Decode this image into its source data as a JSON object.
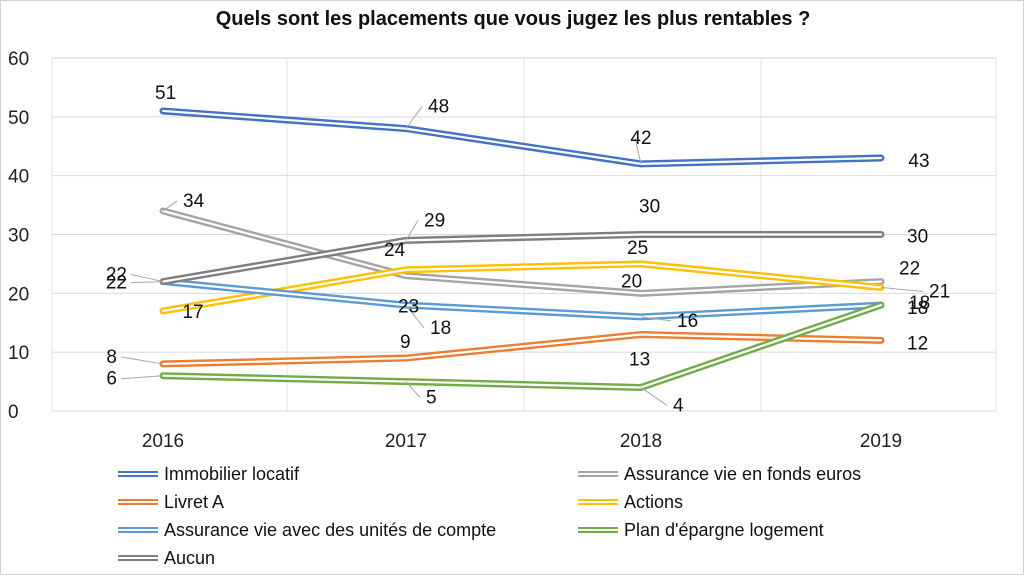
{
  "chart_data": {
    "type": "line",
    "title": "Quels sont les placements que vous jugez les plus rentables ?",
    "xlabel": "",
    "ylabel": "",
    "categories": [
      "2016",
      "2017",
      "2018",
      "2019"
    ],
    "ylim": [
      0,
      60
    ],
    "yticks": [
      0,
      10,
      20,
      30,
      40,
      50,
      60
    ],
    "grid": true,
    "legend_position": "bottom",
    "series": [
      {
        "name": "Immobilier locatif",
        "color": "#4472C4",
        "values": [
          51,
          48,
          42,
          43
        ]
      },
      {
        "name": "Assurance vie en fonds euros",
        "color": "#A5A5A5",
        "values": [
          34,
          23,
          20,
          22
        ]
      },
      {
        "name": "Livret A",
        "color": "#ED7D31",
        "values": [
          8,
          9,
          13,
          12
        ]
      },
      {
        "name": "Actions",
        "color": "#FFC000",
        "values": [
          17,
          24,
          25,
          21
        ]
      },
      {
        "name": "Assurance vie avec des unités de compte",
        "color": "#5B9BD5",
        "values": [
          22,
          18,
          16,
          18
        ]
      },
      {
        "name": "Plan d'épargne logement",
        "color": "#70AD47",
        "values": [
          6,
          5,
          4,
          18
        ]
      },
      {
        "name": "Aucun",
        "color": "#7F7F7F",
        "values": [
          22,
          29,
          30,
          30
        ]
      }
    ]
  }
}
